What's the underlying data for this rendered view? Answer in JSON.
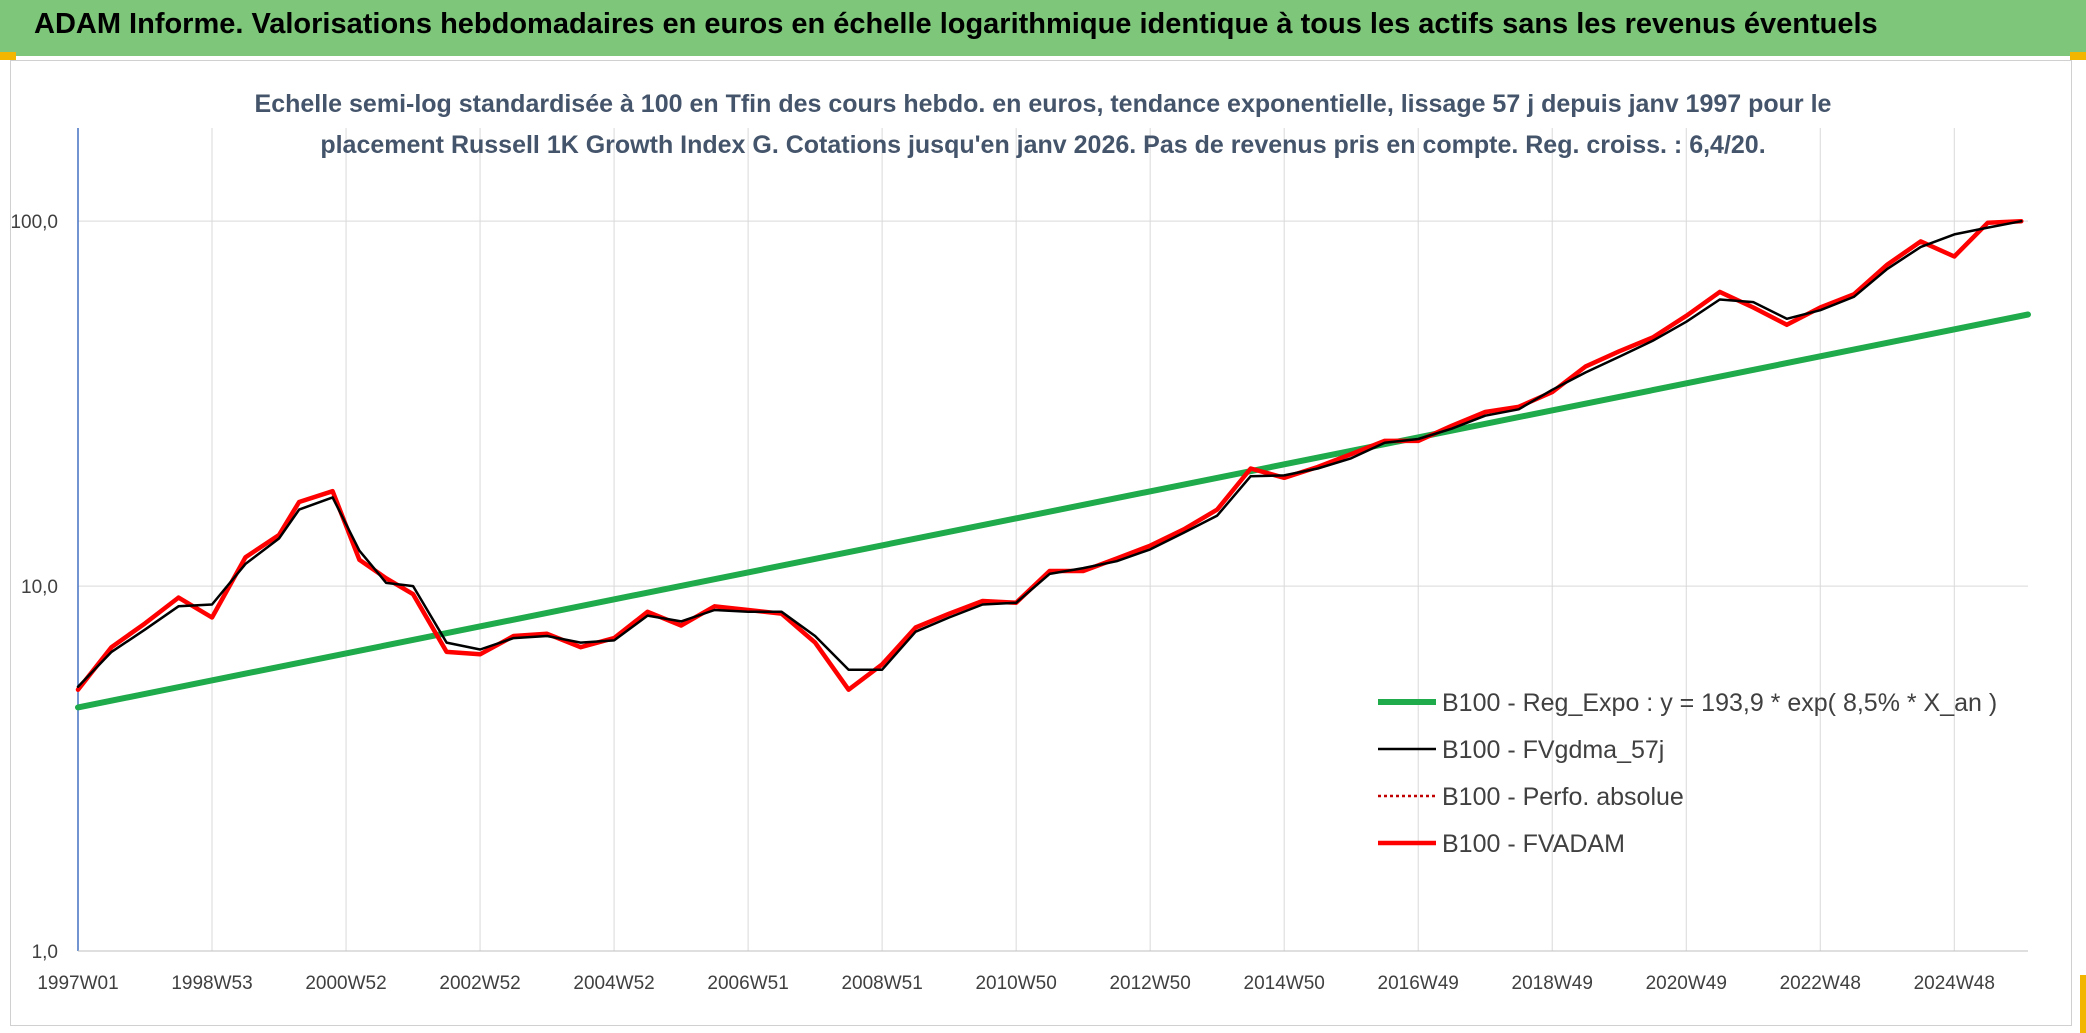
{
  "header": {
    "title": "ADAM Informe. Valorisations hebdomadaires en euros en échelle logarithmique identique à tous les actifs sans les revenus éventuels"
  },
  "colors": {
    "banner": "#7dc67a",
    "accent_corner": "#f2b600",
    "regression": "#1faa4b",
    "fvgdma": "#000000",
    "perfo": "#c00000",
    "fvadam": "#ff0000",
    "gridline": "#d9d9d9",
    "axis": "#4472c4"
  },
  "chart_data": {
    "type": "line",
    "title_lines": [
      "Echelle semi-log standardisée à 100 en Tfin des cours hebdo. en euros, tendance exponentielle, lissage 57 j depuis janv 1997 pour le",
      "placement Russell 1K Growth Index G. Cotations jusqu'en janv 2026. Pas de revenus pris en compte. Reg. croiss. : 6,4/20."
    ],
    "y_scale": "log",
    "ylim": [
      1,
      180
    ],
    "xlim": [
      1997.0,
      2026.1
    ],
    "y_ticks": [
      {
        "value": 1,
        "label": "1,0"
      },
      {
        "value": 10,
        "label": "10,0"
      },
      {
        "value": 100,
        "label": "100,0"
      }
    ],
    "x_ticks": [
      {
        "value": 1997.0,
        "label": "1997W01"
      },
      {
        "value": 1999.0,
        "label": "1998W53"
      },
      {
        "value": 2001.0,
        "label": "2000W52"
      },
      {
        "value": 2003.0,
        "label": "2002W52"
      },
      {
        "value": 2005.0,
        "label": "2004W52"
      },
      {
        "value": 2007.0,
        "label": "2006W51"
      },
      {
        "value": 2009.0,
        "label": "2008W51"
      },
      {
        "value": 2011.0,
        "label": "2010W50"
      },
      {
        "value": 2013.0,
        "label": "2012W50"
      },
      {
        "value": 2015.0,
        "label": "2014W50"
      },
      {
        "value": 2017.0,
        "label": "2016W49"
      },
      {
        "value": 2019.0,
        "label": "2018W49"
      },
      {
        "value": 2021.0,
        "label": "2020W49"
      },
      {
        "value": 2023.0,
        "label": "2022W48"
      },
      {
        "value": 2025.0,
        "label": "2024W48"
      }
    ],
    "grid": true,
    "legend_position": "bottom-right",
    "series": [
      {
        "name": "B100 - Reg_Expo : y = 193,9 * exp( 8,5% *  X_an )",
        "style": "regression",
        "x": [
          1997.0,
          2026.1
        ],
        "y": [
          4.65,
          55.5
        ]
      },
      {
        "name": "B100 - FVgdma_57j",
        "style": "fvgdma",
        "x": [
          1997.0,
          1997.5,
          1998.0,
          1998.5,
          1999.0,
          1999.5,
          2000.0,
          2000.3,
          2000.8,
          2001.2,
          2001.6,
          2002.0,
          2002.5,
          2003.0,
          2003.5,
          2004.0,
          2004.5,
          2005.0,
          2005.5,
          2006.0,
          2006.5,
          2007.0,
          2007.5,
          2008.0,
          2008.5,
          2009.0,
          2009.5,
          2010.0,
          2010.5,
          2011.0,
          2011.5,
          2012.0,
          2012.5,
          2013.0,
          2013.5,
          2014.0,
          2014.5,
          2015.0,
          2015.5,
          2016.0,
          2016.5,
          2017.0,
          2017.5,
          2018.0,
          2018.5,
          2019.0,
          2019.5,
          2020.0,
          2020.5,
          2021.0,
          2021.5,
          2022.0,
          2022.5,
          2023.0,
          2023.5,
          2024.0,
          2024.5,
          2025.0,
          2025.5,
          2026.0
        ],
        "y": [
          5.3,
          6.6,
          7.6,
          8.8,
          8.9,
          11.5,
          13.5,
          16.2,
          17.5,
          12.5,
          10.2,
          10.0,
          7.0,
          6.7,
          7.2,
          7.3,
          7.0,
          7.1,
          8.3,
          8.0,
          8.6,
          8.5,
          8.5,
          7.3,
          5.9,
          5.9,
          7.5,
          8.2,
          8.9,
          9.0,
          10.8,
          11.2,
          11.7,
          12.6,
          14.0,
          15.6,
          20.0,
          20.1,
          21.0,
          22.4,
          24.7,
          25.3,
          27.0,
          29.3,
          30.5,
          34.5,
          38.5,
          42.5,
          47.0,
          53.0,
          61.0,
          60.0,
          54.0,
          57.0,
          62.0,
          74.0,
          85.0,
          92.0,
          96.0,
          100.0
        ]
      },
      {
        "name": "B100 - Perfo. absolue",
        "style": "perfo",
        "x": [
          1997.0,
          1997.5,
          1998.0,
          1998.5,
          1999.0,
          1999.5,
          2000.0,
          2000.3,
          2000.8,
          2001.2,
          2001.6,
          2002.0,
          2002.5,
          2003.0,
          2003.5,
          2004.0,
          2004.5,
          2005.0,
          2005.5,
          2006.0,
          2006.5,
          2007.0,
          2007.5,
          2008.0,
          2008.5,
          2009.0,
          2009.5,
          2010.0,
          2010.5,
          2011.0,
          2011.5,
          2012.0,
          2012.5,
          2013.0,
          2013.5,
          2014.0,
          2014.5,
          2015.0,
          2015.5,
          2016.0,
          2016.5,
          2017.0,
          2017.5,
          2018.0,
          2018.5,
          2019.0,
          2019.5,
          2020.0,
          2020.5,
          2021.0,
          2021.5,
          2022.0,
          2022.5,
          2023.0,
          2023.5,
          2024.0,
          2024.5,
          2025.0,
          2025.5,
          2026.0
        ],
        "y": [
          5.2,
          6.8,
          7.9,
          9.3,
          8.2,
          12.0,
          13.8,
          17.0,
          18.2,
          11.8,
          10.5,
          9.5,
          6.6,
          6.5,
          7.3,
          7.4,
          6.8,
          7.2,
          8.5,
          7.8,
          8.8,
          8.6,
          8.4,
          7.0,
          5.2,
          6.1,
          7.7,
          8.4,
          9.1,
          9.0,
          11.0,
          11.0,
          11.9,
          12.9,
          14.3,
          16.2,
          21.0,
          19.8,
          21.2,
          23.0,
          25.0,
          25.0,
          27.5,
          30.0,
          31.0,
          34.0,
          40.0,
          44.0,
          48.0,
          55.0,
          64.0,
          58.0,
          52.0,
          58.0,
          63.0,
          76.0,
          88.0,
          80.0,
          99.0,
          100.0
        ]
      },
      {
        "name": "B100 - FVADAM",
        "style": "fvadam",
        "x": [
          1997.0,
          1997.5,
          1998.0,
          1998.5,
          1999.0,
          1999.5,
          2000.0,
          2000.3,
          2000.8,
          2001.2,
          2001.6,
          2002.0,
          2002.5,
          2003.0,
          2003.5,
          2004.0,
          2004.5,
          2005.0,
          2005.5,
          2006.0,
          2006.5,
          2007.0,
          2007.5,
          2008.0,
          2008.5,
          2009.0,
          2009.5,
          2010.0,
          2010.5,
          2011.0,
          2011.5,
          2012.0,
          2012.5,
          2013.0,
          2013.5,
          2014.0,
          2014.5,
          2015.0,
          2015.5,
          2016.0,
          2016.5,
          2017.0,
          2017.5,
          2018.0,
          2018.5,
          2019.0,
          2019.5,
          2020.0,
          2020.5,
          2021.0,
          2021.5,
          2022.0,
          2022.5,
          2023.0,
          2023.5,
          2024.0,
          2024.5,
          2025.0,
          2025.5,
          2026.0
        ],
        "y": [
          5.2,
          6.8,
          7.9,
          9.3,
          8.2,
          12.0,
          13.8,
          17.0,
          18.2,
          11.8,
          10.5,
          9.5,
          6.6,
          6.5,
          7.3,
          7.4,
          6.8,
          7.2,
          8.5,
          7.8,
          8.8,
          8.6,
          8.4,
          7.0,
          5.2,
          6.1,
          7.7,
          8.4,
          9.1,
          9.0,
          11.0,
          11.0,
          11.9,
          12.9,
          14.3,
          16.2,
          21.0,
          19.8,
          21.2,
          23.0,
          25.0,
          25.0,
          27.5,
          30.0,
          31.0,
          34.0,
          40.0,
          44.0,
          48.0,
          55.0,
          64.0,
          58.0,
          52.0,
          58.0,
          63.0,
          76.0,
          88.0,
          80.0,
          99.0,
          100.0
        ]
      }
    ]
  }
}
